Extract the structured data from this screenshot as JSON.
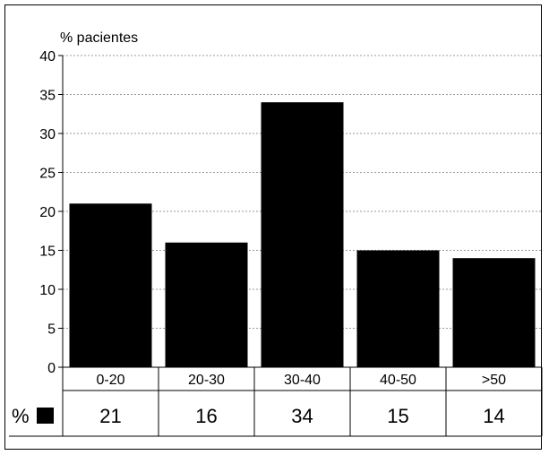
{
  "chart_data": {
    "type": "bar",
    "ylabel": "% pacientes",
    "categories": [
      "0-20",
      "20-30",
      "30-40",
      "40-50",
      ">50"
    ],
    "values": [
      21,
      16,
      34,
      15,
      14
    ],
    "ylim": [
      0,
      40
    ],
    "yticks": [
      0,
      5,
      10,
      15,
      20,
      25,
      30,
      35,
      40
    ],
    "grid": true,
    "legend": {
      "label": "%",
      "color": "#000000"
    },
    "data_table": true,
    "bar_color": "#000000"
  }
}
